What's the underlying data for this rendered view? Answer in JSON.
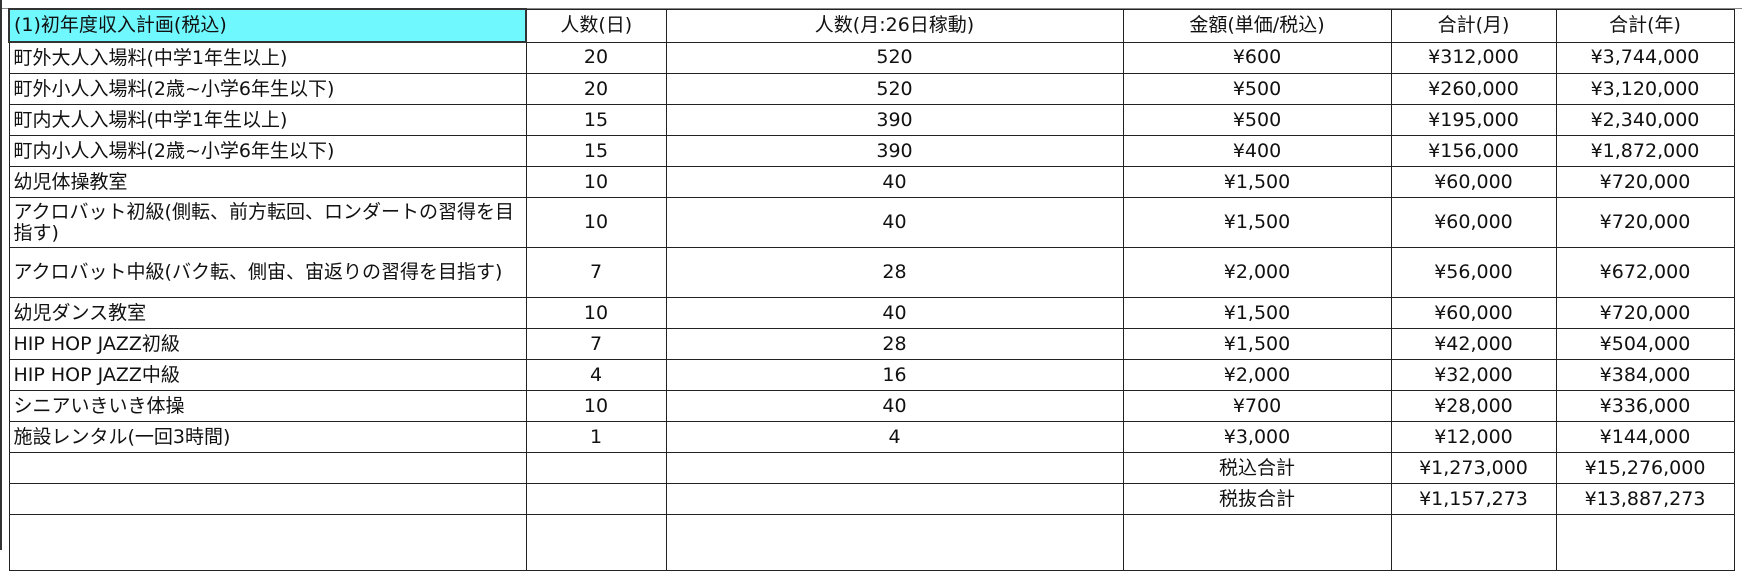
{
  "header": {
    "title": "(1)初年度収入計画(税込)",
    "col_daily": "人数(日)",
    "col_monthly": "人数(月:26日稼動)",
    "col_price": "金額(単価/税込)",
    "col_month_total": "合計(月)",
    "col_year_total": "合計(年)"
  },
  "colors": {
    "title_bg": "#6ff9ff"
  },
  "rows": [
    {
      "name": "町外大人入場料(中学1年生以上)",
      "daily": "20",
      "monthly": "520",
      "price": "¥600",
      "month_total": "¥312,000",
      "year_total": "¥3,744,000"
    },
    {
      "name": "町外小人入場料(2歳~小学6年生以下)",
      "daily": "20",
      "monthly": "520",
      "price": "¥500",
      "month_total": "¥260,000",
      "year_total": "¥3,120,000"
    },
    {
      "name": "町内大人入場料(中学1年生以上)",
      "daily": "15",
      "monthly": "390",
      "price": "¥500",
      "month_total": "¥195,000",
      "year_total": "¥2,340,000"
    },
    {
      "name": "町内小人入場料(2歳~小学6年生以下)",
      "daily": "15",
      "monthly": "390",
      "price": "¥400",
      "month_total": "¥156,000",
      "year_total": "¥1,872,000"
    },
    {
      "name": "幼児体操教室",
      "daily": "10",
      "monthly": "40",
      "price": "¥1,500",
      "month_total": "¥60,000",
      "year_total": "¥720,000"
    },
    {
      "name": "アクロバット初級(側転、前方転回、ロンダートの習得を目指す)",
      "daily": "10",
      "monthly": "40",
      "price": "¥1,500",
      "month_total": "¥60,000",
      "year_total": "¥720,000"
    },
    {
      "name": "アクロバット中級(バク転、側宙、宙返りの習得を目指す)",
      "daily": "7",
      "monthly": "28",
      "price": "¥2,000",
      "month_total": "¥56,000",
      "year_total": "¥672,000"
    },
    {
      "name": "幼児ダンス教室",
      "daily": "10",
      "monthly": "40",
      "price": "¥1,500",
      "month_total": "¥60,000",
      "year_total": "¥720,000"
    },
    {
      "name": "HIP HOP JAZZ初級",
      "daily": "7",
      "monthly": "28",
      "price": "¥1,500",
      "month_total": "¥42,000",
      "year_total": "¥504,000"
    },
    {
      "name": "HIP HOP JAZZ中級",
      "daily": "4",
      "monthly": "16",
      "price": "¥2,000",
      "month_total": "¥32,000",
      "year_total": "¥384,000"
    },
    {
      "name": "シニアいきいき体操",
      "daily": "10",
      "monthly": "40",
      "price": "¥700",
      "month_total": "¥28,000",
      "year_total": "¥336,000"
    },
    {
      "name": "施設レンタル(一回3時間)",
      "daily": "1",
      "monthly": "4",
      "price": "¥3,000",
      "month_total": "¥12,000",
      "year_total": "¥144,000"
    }
  ],
  "totals": [
    {
      "label": "税込合計",
      "month_total": "¥1,273,000",
      "year_total": "¥15,276,000"
    },
    {
      "label": "税抜合計",
      "month_total": "¥1,157,273",
      "year_total": "¥13,887,273"
    }
  ]
}
